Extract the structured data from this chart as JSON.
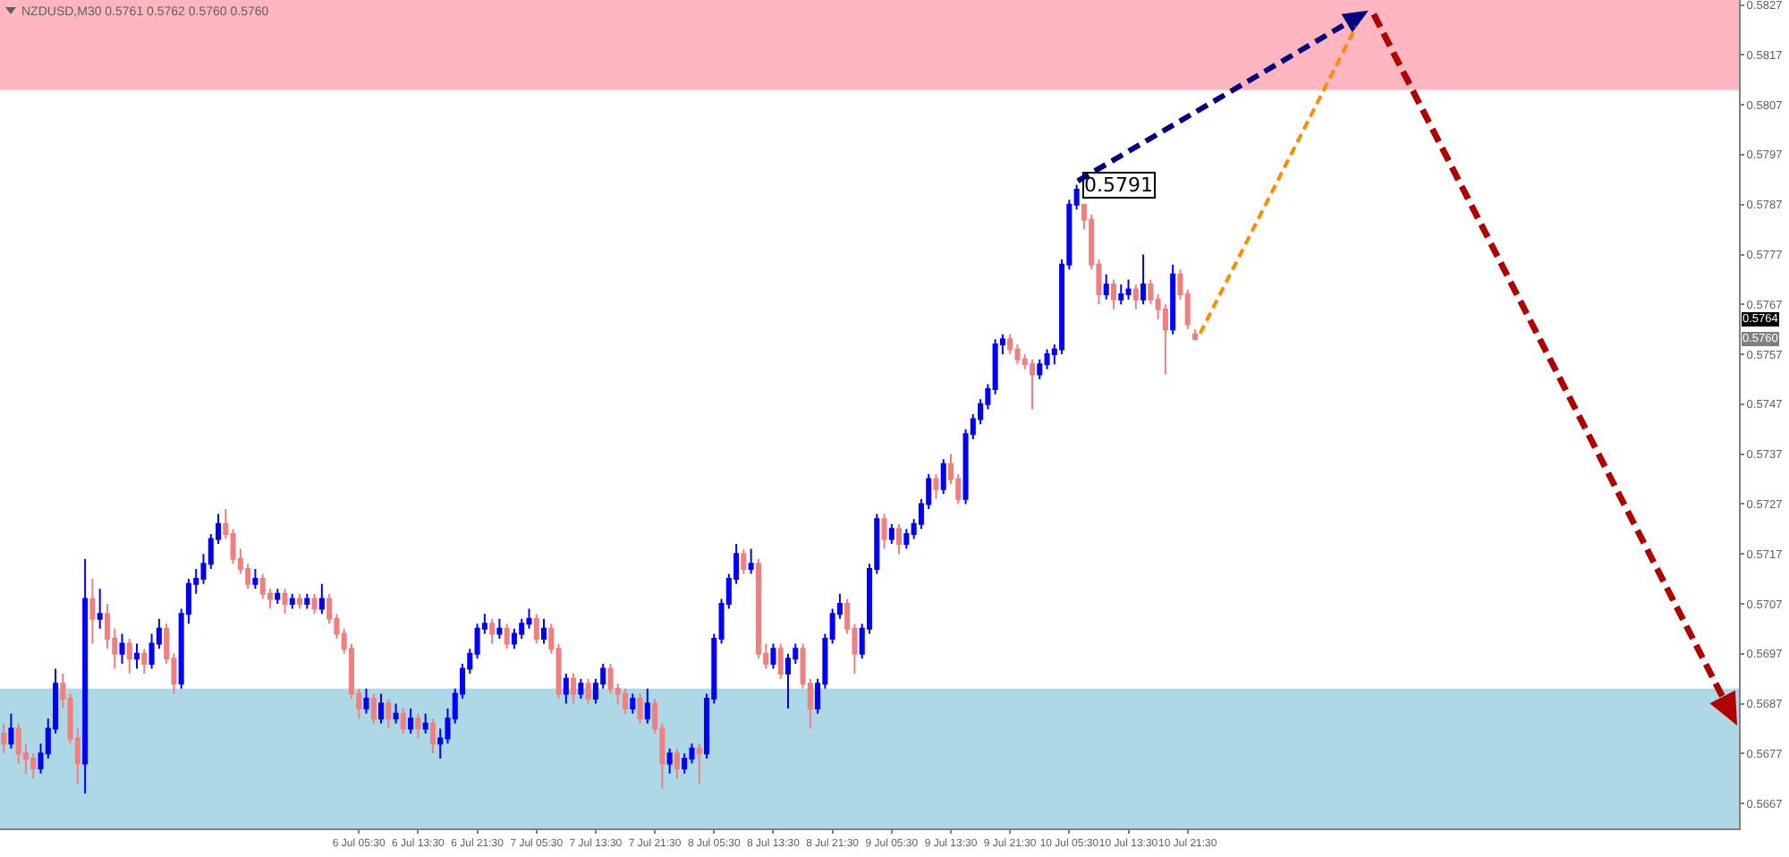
{
  "chart_data": {
    "type": "candlestick",
    "title": "NZDUSD,M30 0.5761 0.5762 0.5760 0.5760",
    "categories": [
      null,
      null,
      null,
      null,
      null,
      null,
      null,
      null,
      null,
      null,
      null,
      null,
      null,
      null,
      null,
      null,
      null,
      null,
      null,
      null,
      null,
      null,
      null,
      null,
      null,
      null,
      null,
      null,
      null,
      null,
      null,
      null,
      null,
      null,
      null,
      null,
      null,
      null,
      null,
      null,
      null,
      null,
      null,
      null,
      null,
      null,
      null,
      null,
      "6 Jul 05:30",
      null,
      null,
      null,
      null,
      null,
      null,
      null,
      "6 Jul 13:30",
      null,
      null,
      null,
      null,
      null,
      null,
      null,
      "6 Jul 21:30",
      null,
      null,
      null,
      null,
      null,
      null,
      null,
      "7 Jul 05:30",
      null,
      null,
      null,
      null,
      null,
      null,
      null,
      "7 Jul 13:30",
      null,
      null,
      null,
      null,
      null,
      null,
      null,
      "7 Jul 21:30",
      null,
      null,
      null,
      null,
      null,
      null,
      null,
      "8 Jul 05:30",
      null,
      null,
      null,
      null,
      null,
      null,
      null,
      "8 Jul 13:30",
      null,
      null,
      null,
      null,
      null,
      null,
      null,
      "8 Jul 21:30",
      null,
      null,
      null,
      null,
      null,
      null,
      null,
      "9 Jul 05:30",
      null,
      null,
      null,
      null,
      null,
      null,
      null,
      "9 Jul 13:30",
      null,
      null,
      null,
      null,
      null,
      null,
      null,
      "9 Jul 21:30",
      null,
      null,
      null,
      null,
      null,
      null,
      null,
      "10 Jul 05:30",
      null,
      null,
      null,
      null,
      null,
      null,
      null,
      "10 Jul 13:30",
      null,
      null,
      null,
      null,
      null,
      null,
      null,
      "10 Jul 21:30",
      null,
      null,
      null,
      null,
      null,
      null,
      null,
      null,
      null,
      null,
      null,
      null,
      null,
      null,
      null,
      null,
      null,
      null,
      null,
      null,
      null,
      null,
      null,
      null,
      null,
      null,
      null,
      null,
      null,
      null,
      null,
      null,
      null,
      null,
      null,
      null,
      null,
      null,
      null,
      null,
      null,
      null,
      null,
      null,
      null,
      null,
      null,
      null,
      null,
      null,
      null,
      null,
      null,
      null,
      null,
      null,
      null,
      null,
      null,
      null,
      null,
      null,
      null,
      null,
      null,
      null,
      null,
      null,
      null,
      null,
      null,
      null,
      null,
      null
    ],
    "ohlc": [
      [
        0.5681,
        0.5683,
        0.5677,
        0.5679
      ],
      [
        0.5679,
        0.5685,
        0.5678,
        0.5682
      ],
      [
        0.5682,
        0.5683,
        0.5675,
        0.5677
      ],
      [
        0.5677,
        0.5679,
        0.5673,
        0.5676
      ],
      [
        0.5676,
        0.5677,
        0.5672,
        0.5674
      ],
      [
        0.5674,
        0.5679,
        0.5673,
        0.5677
      ],
      [
        0.5677,
        0.5684,
        0.5676,
        0.5682
      ],
      [
        0.5682,
        0.5694,
        0.5681,
        0.5691
      ],
      [
        0.5691,
        0.5693,
        0.5686,
        0.5688
      ],
      [
        0.5688,
        0.5689,
        0.5679,
        0.568
      ],
      [
        0.568,
        0.5682,
        0.5671,
        0.5675
      ],
      [
        0.5675,
        0.5716,
        0.5669,
        0.5708
      ],
      [
        0.5708,
        0.5712,
        0.5699,
        0.5704
      ],
      [
        0.5704,
        0.571,
        0.5702,
        0.5705
      ],
      [
        0.5705,
        0.5707,
        0.5698,
        0.57
      ],
      [
        0.57,
        0.5702,
        0.5694,
        0.5697
      ],
      [
        0.5697,
        0.5701,
        0.5695,
        0.5699
      ],
      [
        0.5699,
        0.57,
        0.5693,
        0.5696
      ],
      [
        0.5696,
        0.5699,
        0.5694,
        0.5697
      ],
      [
        0.5697,
        0.5698,
        0.5693,
        0.5695
      ],
      [
        0.5695,
        0.5701,
        0.5694,
        0.5699
      ],
      [
        0.5699,
        0.5704,
        0.5698,
        0.5702
      ],
      [
        0.5702,
        0.5703,
        0.5695,
        0.5696
      ],
      [
        0.5696,
        0.5697,
        0.5689,
        0.5691
      ],
      [
        0.5691,
        0.5706,
        0.569,
        0.5705
      ],
      [
        0.5705,
        0.5712,
        0.5703,
        0.5711
      ],
      [
        0.5711,
        0.5714,
        0.5709,
        0.5712
      ],
      [
        0.5712,
        0.5717,
        0.5711,
        0.5715
      ],
      [
        0.5715,
        0.5721,
        0.5714,
        0.572
      ],
      [
        0.572,
        0.5725,
        0.5719,
        0.5723
      ],
      [
        0.5723,
        0.5726,
        0.572,
        0.5721
      ],
      [
        0.5721,
        0.5722,
        0.5715,
        0.5716
      ],
      [
        0.5716,
        0.5718,
        0.5713,
        0.5714
      ],
      [
        0.5714,
        0.5715,
        0.571,
        0.5711
      ],
      [
        0.5711,
        0.5714,
        0.571,
        0.5712
      ],
      [
        0.5712,
        0.5713,
        0.5708,
        0.5709
      ],
      [
        0.5709,
        0.571,
        0.5706,
        0.5708
      ],
      [
        0.5708,
        0.571,
        0.5707,
        0.5709
      ],
      [
        0.5709,
        0.571,
        0.5705,
        0.5707
      ],
      [
        0.5707,
        0.5709,
        0.5706,
        0.5708
      ],
      [
        0.5708,
        0.5709,
        0.5706,
        0.5707
      ],
      [
        0.5707,
        0.5709,
        0.5706,
        0.5708
      ],
      [
        0.5708,
        0.5709,
        0.5705,
        0.5706
      ],
      [
        0.5706,
        0.5711,
        0.5705,
        0.5708
      ],
      [
        0.5708,
        0.5709,
        0.5703,
        0.5704
      ],
      [
        0.5704,
        0.5705,
        0.57,
        0.5701
      ],
      [
        0.5701,
        0.5702,
        0.5697,
        0.5698
      ],
      [
        0.5698,
        0.5699,
        0.5688,
        0.5689
      ],
      [
        0.5689,
        0.569,
        0.5684,
        0.5686
      ],
      [
        0.5686,
        0.569,
        0.5685,
        0.5688
      ],
      [
        0.5688,
        0.5689,
        0.5683,
        0.5684
      ],
      [
        0.5684,
        0.5689,
        0.5683,
        0.5687
      ],
      [
        0.5687,
        0.5688,
        0.5682,
        0.5684
      ],
      [
        0.5684,
        0.5687,
        0.5683,
        0.5685
      ],
      [
        0.5685,
        0.5686,
        0.5681,
        0.5682
      ],
      [
        0.5682,
        0.5686,
        0.5681,
        0.5684
      ],
      [
        0.5684,
        0.5685,
        0.568,
        0.5682
      ],
      [
        0.5682,
        0.5685,
        0.5681,
        0.5683
      ],
      [
        0.5683,
        0.5684,
        0.5677,
        0.5679
      ],
      [
        0.5679,
        0.5682,
        0.5676,
        0.568
      ],
      [
        0.568,
        0.5686,
        0.5679,
        0.5684
      ],
      [
        0.5684,
        0.569,
        0.5683,
        0.5689
      ],
      [
        0.5689,
        0.5695,
        0.5688,
        0.5694
      ],
      [
        0.5694,
        0.5698,
        0.5693,
        0.5697
      ],
      [
        0.5697,
        0.5703,
        0.5696,
        0.5702
      ],
      [
        0.5702,
        0.5705,
        0.5701,
        0.5703
      ],
      [
        0.5703,
        0.5704,
        0.5699,
        0.5701
      ],
      [
        0.5701,
        0.5704,
        0.57,
        0.5702
      ],
      [
        0.5702,
        0.5703,
        0.5698,
        0.5699
      ],
      [
        0.5699,
        0.5702,
        0.5698,
        0.5701
      ],
      [
        0.5701,
        0.5704,
        0.57,
        0.5703
      ],
      [
        0.5703,
        0.5706,
        0.5702,
        0.5704
      ],
      [
        0.5704,
        0.5705,
        0.5699,
        0.57
      ],
      [
        0.57,
        0.5704,
        0.5699,
        0.5702
      ],
      [
        0.5702,
        0.5703,
        0.5697,
        0.5698
      ],
      [
        0.5698,
        0.5699,
        0.5688,
        0.5689
      ],
      [
        0.5689,
        0.5693,
        0.5687,
        0.5692
      ],
      [
        0.5692,
        0.5693,
        0.5687,
        0.5689
      ],
      [
        0.5689,
        0.5692,
        0.5688,
        0.5691
      ],
      [
        0.5691,
        0.5692,
        0.5687,
        0.5688
      ],
      [
        0.5688,
        0.5692,
        0.5687,
        0.5691
      ],
      [
        0.5691,
        0.5695,
        0.569,
        0.5694
      ],
      [
        0.5694,
        0.5695,
        0.5689,
        0.569
      ],
      [
        0.569,
        0.5691,
        0.5687,
        0.5689
      ],
      [
        0.5689,
        0.569,
        0.5685,
        0.5686
      ],
      [
        0.5686,
        0.5689,
        0.5685,
        0.5688
      ],
      [
        0.5688,
        0.5689,
        0.5683,
        0.5684
      ],
      [
        0.5684,
        0.569,
        0.5683,
        0.5687
      ],
      [
        0.5687,
        0.5688,
        0.5681,
        0.5682
      ],
      [
        0.5682,
        0.5683,
        0.567,
        0.5675
      ],
      [
        0.5675,
        0.5678,
        0.5673,
        0.5677
      ],
      [
        0.5677,
        0.5678,
        0.5672,
        0.5674
      ],
      [
        0.5674,
        0.5677,
        0.5673,
        0.5676
      ],
      [
        0.5676,
        0.5679,
        0.5675,
        0.5678
      ],
      [
        0.5678,
        0.5679,
        0.5671,
        0.5677
      ],
      [
        0.5677,
        0.5689,
        0.5676,
        0.5688
      ],
      [
        0.5688,
        0.5701,
        0.5687,
        0.57
      ],
      [
        0.57,
        0.5708,
        0.5699,
        0.5707
      ],
      [
        0.5707,
        0.5713,
        0.5706,
        0.5712
      ],
      [
        0.5712,
        0.5719,
        0.5711,
        0.5717
      ],
      [
        0.5717,
        0.5718,
        0.5713,
        0.5714
      ],
      [
        0.5714,
        0.5718,
        0.5713,
        0.5715
      ],
      [
        0.5715,
        0.5716,
        0.5696,
        0.5697
      ],
      [
        0.5697,
        0.5699,
        0.5694,
        0.5695
      ],
      [
        0.5695,
        0.5699,
        0.5694,
        0.5698
      ],
      [
        0.5698,
        0.5699,
        0.5692,
        0.5693
      ],
      [
        0.5693,
        0.5697,
        0.5686,
        0.5696
      ],
      [
        0.5696,
        0.5699,
        0.5695,
        0.5698
      ],
      [
        0.5698,
        0.5699,
        0.569,
        0.5691
      ],
      [
        0.5691,
        0.5692,
        0.5682,
        0.5686
      ],
      [
        0.5686,
        0.5692,
        0.5685,
        0.5691
      ],
      [
        0.5691,
        0.5701,
        0.569,
        0.57
      ],
      [
        0.57,
        0.5706,
        0.5699,
        0.5705
      ],
      [
        0.5705,
        0.5709,
        0.5704,
        0.5707
      ],
      [
        0.5707,
        0.5708,
        0.5701,
        0.5702
      ],
      [
        0.5702,
        0.5703,
        0.5693,
        0.5697
      ],
      [
        0.5697,
        0.5703,
        0.5696,
        0.5702
      ],
      [
        0.5702,
        0.5715,
        0.5701,
        0.5714
      ],
      [
        0.5714,
        0.5725,
        0.5713,
        0.5724
      ],
      [
        0.5724,
        0.5725,
        0.5718,
        0.572
      ],
      [
        0.572,
        0.5723,
        0.5719,
        0.5722
      ],
      [
        0.5722,
        0.5723,
        0.5717,
        0.5719
      ],
      [
        0.5719,
        0.5722,
        0.5718,
        0.5721
      ],
      [
        0.5721,
        0.5724,
        0.572,
        0.5723
      ],
      [
        0.5723,
        0.5728,
        0.5722,
        0.5727
      ],
      [
        0.5727,
        0.5733,
        0.5726,
        0.5732
      ],
      [
        0.5732,
        0.5733,
        0.5728,
        0.573
      ],
      [
        0.573,
        0.5736,
        0.5729,
        0.5735
      ],
      [
        0.5735,
        0.5737,
        0.5731,
        0.5732
      ],
      [
        0.5732,
        0.5733,
        0.5727,
        0.5728
      ],
      [
        0.5728,
        0.5742,
        0.5727,
        0.5741
      ],
      [
        0.5741,
        0.5745,
        0.574,
        0.5744
      ],
      [
        0.5744,
        0.5748,
        0.5743,
        0.5747
      ],
      [
        0.5747,
        0.5751,
        0.5746,
        0.575
      ],
      [
        0.575,
        0.576,
        0.5749,
        0.5759
      ],
      [
        0.5759,
        0.5761,
        0.5757,
        0.576
      ],
      [
        0.576,
        0.5761,
        0.5757,
        0.5758
      ],
      [
        0.5758,
        0.5759,
        0.5755,
        0.5756
      ],
      [
        0.5756,
        0.5757,
        0.5754,
        0.5755
      ],
      [
        0.5755,
        0.5756,
        0.5746,
        0.5753
      ],
      [
        0.5753,
        0.5756,
        0.5752,
        0.5755
      ],
      [
        0.5755,
        0.5758,
        0.5754,
        0.5757
      ],
      [
        0.5757,
        0.5759,
        0.5755,
        0.5758
      ],
      [
        0.5758,
        0.5776,
        0.5757,
        0.5775
      ],
      [
        0.5775,
        0.5788,
        0.5774,
        0.5787
      ],
      [
        0.5787,
        0.5791,
        0.5786,
        0.579
      ],
      [
        0.5787,
        0.5787,
        0.5782,
        0.5784
      ],
      [
        0.5784,
        0.5785,
        0.5774,
        0.5775
      ],
      [
        0.5775,
        0.5776,
        0.5767,
        0.5769
      ],
      [
        0.5769,
        0.5773,
        0.5768,
        0.5771
      ],
      [
        0.5771,
        0.5772,
        0.5766,
        0.5768
      ],
      [
        0.5768,
        0.5771,
        0.5767,
        0.5769
      ],
      [
        0.5769,
        0.5772,
        0.5768,
        0.577
      ],
      [
        0.577,
        0.5771,
        0.5766,
        0.5768
      ],
      [
        0.5768,
        0.5777,
        0.5767,
        0.5771
      ],
      [
        0.5771,
        0.5772,
        0.5767,
        0.5768
      ],
      [
        0.5768,
        0.5769,
        0.5764,
        0.5766
      ],
      [
        0.5766,
        0.5767,
        0.5753,
        0.5762
      ],
      [
        0.5762,
        0.5775,
        0.5761,
        0.5773
      ],
      [
        0.5773,
        0.5774,
        0.5768,
        0.5769
      ],
      [
        0.5769,
        0.577,
        0.5762,
        0.5763
      ],
      [
        0.5761,
        0.5762,
        0.576,
        0.576
      ],
      null,
      null,
      null,
      null,
      null,
      null,
      null,
      null,
      null,
      null,
      null,
      null,
      null,
      null,
      null,
      null,
      null,
      null,
      null,
      null,
      null,
      null,
      null,
      null,
      null,
      null,
      null,
      null,
      null,
      null,
      null,
      null,
      null,
      null,
      null,
      null,
      null,
      null,
      null,
      null,
      null,
      null,
      null,
      null,
      null,
      null,
      null,
      null,
      null,
      null,
      null,
      null,
      null,
      null,
      null,
      null,
      null,
      null,
      null,
      null,
      null,
      null,
      null,
      null,
      null,
      null,
      null,
      null,
      null,
      null,
      null,
      null,
      null
    ],
    "colors": [
      "#f08080",
      "#0000ff",
      "#f08080",
      "#f08080",
      "#f08080",
      "#0000ff",
      "#0000ff",
      "#0000ff",
      "#f08080",
      "#f08080",
      "#f08080",
      "#0000ff",
      "#f08080",
      "#0000ff",
      "#f08080",
      "#f08080",
      "#0000ff",
      "#f08080",
      "#0000ff",
      "#f08080",
      "#0000ff",
      "#0000ff",
      "#f08080",
      "#f08080",
      "#0000ff",
      "#0000ff",
      "#0000ff",
      "#0000ff",
      "#0000ff",
      "#0000ff",
      "#f08080",
      "#f08080",
      "#f08080",
      "#f08080",
      "#0000ff",
      "#f08080",
      "#f08080",
      "#0000ff",
      "#f08080",
      "#0000ff",
      "#f08080",
      "#0000ff",
      "#f08080",
      "#0000ff",
      "#f08080",
      "#f08080",
      "#f08080",
      "#f08080",
      "#f08080",
      "#0000ff",
      "#f08080",
      "#0000ff",
      "#f08080",
      "#0000ff",
      "#f08080",
      "#0000ff",
      "#f08080",
      "#0000ff",
      "#f08080",
      "#0000ff",
      "#0000ff",
      "#0000ff",
      "#0000ff",
      "#0000ff",
      "#0000ff",
      "#0000ff",
      "#f08080",
      "#0000ff",
      "#f08080",
      "#0000ff",
      "#0000ff",
      "#0000ff",
      "#f08080",
      "#0000ff",
      "#f08080",
      "#f08080",
      "#0000ff",
      "#f08080",
      "#0000ff",
      "#f08080",
      "#0000ff",
      "#0000ff",
      "#f08080",
      "#f08080",
      "#f08080",
      "#0000ff",
      "#f08080",
      "#0000ff",
      "#f08080",
      "#f08080",
      "#0000ff",
      "#f08080",
      "#0000ff",
      "#0000ff",
      "#f08080",
      "#0000ff",
      "#0000ff",
      "#0000ff",
      "#0000ff",
      "#0000ff",
      "#f08080",
      "#0000ff",
      "#f08080",
      "#f08080",
      "#0000ff",
      "#f08080",
      "#0000ff",
      "#0000ff",
      "#f08080",
      "#f08080",
      "#0000ff",
      "#0000ff",
      "#0000ff",
      "#0000ff",
      "#f08080",
      "#f08080",
      "#0000ff",
      "#0000ff",
      "#0000ff",
      "#f08080",
      "#0000ff",
      "#f08080",
      "#0000ff",
      "#0000ff",
      "#0000ff",
      "#0000ff",
      "#f08080",
      "#0000ff",
      "#f08080",
      "#f08080",
      "#0000ff",
      "#0000ff",
      "#0000ff",
      "#0000ff",
      "#0000ff",
      "#0000ff",
      "#f08080",
      "#f08080",
      "#f08080",
      "#f08080",
      "#0000ff",
      "#0000ff",
      "#0000ff",
      "#0000ff",
      "#0000ff",
      "#0000ff",
      "#f08080",
      "#f08080",
      "#f08080",
      "#0000ff",
      "#f08080",
      "#0000ff",
      "#0000ff",
      "#f08080",
      "#0000ff",
      "#f08080",
      "#f08080",
      "#f08080",
      "#0000ff",
      "#f08080",
      "#f08080",
      "#f08080",
      null,
      null,
      null,
      null,
      null,
      null,
      null,
      null,
      null,
      null,
      null,
      null,
      null,
      null,
      null,
      null,
      null,
      null,
      null,
      null,
      null,
      null,
      null,
      null,
      null,
      null,
      null,
      null,
      null,
      null,
      null,
      null,
      null,
      null,
      null,
      null,
      null,
      null,
      null,
      null,
      null,
      null,
      null,
      null,
      null,
      null,
      null,
      null,
      null,
      null,
      null,
      null,
      null,
      null,
      null,
      null,
      null,
      null,
      null,
      null,
      null,
      null,
      null,
      null,
      null,
      null,
      null,
      null,
      null,
      null,
      null,
      null,
      null
    ],
    "ylim": [
      0.5662,
      0.5828
    ],
    "yticks": [
      0.5667,
      0.5677,
      0.5687,
      0.5697,
      0.5707,
      0.5717,
      0.5727,
      0.5737,
      0.5747,
      0.5757,
      0.5767,
      0.5777,
      0.5787,
      0.5797,
      0.5807,
      0.5817,
      0.5827
    ],
    "bands": [
      {
        "axis": "y",
        "from": 0.581,
        "to": 0.5828,
        "color": "#ffb6c1"
      },
      {
        "axis": "y",
        "from": 0.5662,
        "to": 0.569,
        "color": "#add8e6"
      }
    ],
    "annotations": [
      "0.5791",
      {
        "text": "0.5764",
        "y": 0.5764
      },
      {
        "text": "0.5760",
        "y": 0.576
      }
    ]
  }
}
